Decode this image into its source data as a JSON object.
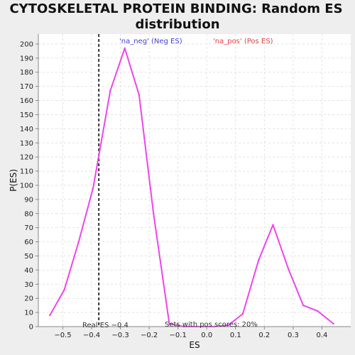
{
  "chart_data": {
    "type": "line",
    "title_lines": [
      "CYTOSKELETAL PROTEIN BINDING: Random ES",
      "distribution"
    ],
    "xlabel": "ES",
    "ylabel": "P(ES)",
    "xlim": [
      -0.585,
      0.5
    ],
    "ylim": [
      0,
      207
    ],
    "x_ticks": [
      -0.5,
      -0.4,
      -0.3,
      -0.2,
      -0.1,
      0.0,
      0.1,
      0.2,
      0.3,
      0.4
    ],
    "x_tick_labels": [
      "−0.5",
      "−0.4",
      "−0.3",
      "−0.2",
      "−0.1",
      "0.0",
      "0.1",
      "0.2",
      "0.3",
      "0.4"
    ],
    "y_ticks": [
      0,
      10,
      20,
      30,
      40,
      50,
      60,
      70,
      80,
      90,
      100,
      110,
      120,
      130,
      140,
      150,
      160,
      170,
      180,
      190,
      200
    ],
    "y_tick_labels": [
      "0",
      "10",
      "20",
      "30",
      "40",
      "50",
      "60",
      "70",
      "80",
      "90",
      "100",
      "110",
      "120",
      "130",
      "140",
      "150",
      "160",
      "170",
      "180",
      "190",
      "200"
    ],
    "grid": true,
    "series": [
      {
        "color": "#ee44ee",
        "x": [
          -0.545,
          -0.495,
          -0.445,
          -0.395,
          -0.335,
          -0.285,
          -0.235,
          -0.185,
          -0.13,
          -0.08,
          -0.03,
          0.025,
          0.075,
          0.125,
          0.18,
          0.23,
          0.285,
          0.335,
          0.385,
          0.44
        ],
        "y": [
          8,
          26,
          60,
          98,
          167,
          197,
          164,
          80,
          2,
          0,
          0,
          0,
          1,
          9,
          47,
          72,
          40,
          15,
          11,
          2
        ]
      }
    ],
    "reference_line": {
      "x": -0.375,
      "style": "dashed",
      "color": "#333333"
    },
    "legend": [
      {
        "text": "'na_neg' (Neg ES)",
        "color": "#4444cc",
        "placement": "top-center-left"
      },
      {
        "text": "'na_pos' (Pos ES)",
        "color": "#dd4444",
        "placement": "top-center-right"
      }
    ],
    "annotations": [
      {
        "text": "Real ES −0.4",
        "placement": "bottom-left"
      },
      {
        "text": "Sets with pos scores: 20%",
        "placement": "bottom-center"
      }
    ],
    "colors": {
      "background": "#eeeeee",
      "plot_background": "#ffffff",
      "grid": "#e2e2e2",
      "axis": "#888888"
    }
  }
}
